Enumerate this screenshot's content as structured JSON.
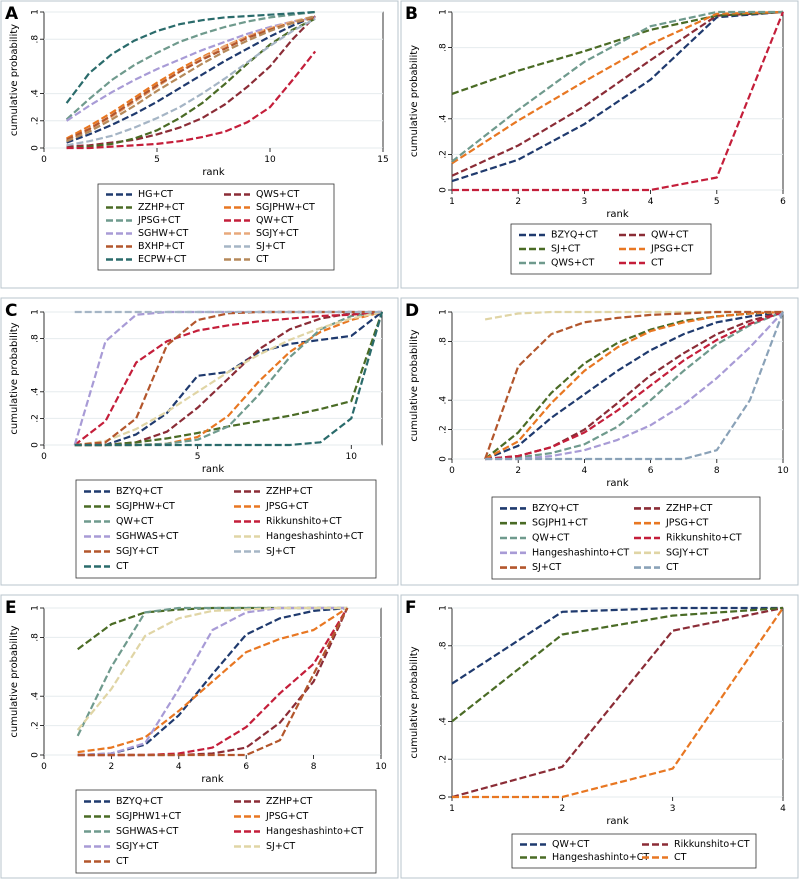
{
  "chart_data": [
    {
      "panel": "A",
      "type": "line",
      "xlabel": "rank",
      "ylabel": "cumulative probability",
      "xlim": [
        0,
        15
      ],
      "ylim": [
        0,
        1
      ],
      "xticks": [
        0,
        5,
        10,
        15
      ],
      "yticks": [
        0,
        0.2,
        0.4,
        0.8,
        1
      ],
      "ytick_labels": [
        "0",
        ".2",
        ".4",
        ".8",
        "1"
      ],
      "x": [
        1,
        2,
        3,
        4,
        5,
        6,
        7,
        8,
        9,
        10,
        11,
        12
      ],
      "series": [
        {
          "name": "HG+CT",
          "color": "#1f3a6e",
          "values": [
            0.04,
            0.1,
            0.17,
            0.25,
            0.34,
            0.44,
            0.54,
            0.64,
            0.73,
            0.82,
            0.9,
            0.97
          ]
        },
        {
          "name": "QWS+CT",
          "color": "#8b2c36",
          "values": [
            0.01,
            0.02,
            0.04,
            0.06,
            0.1,
            0.15,
            0.22,
            0.32,
            0.45,
            0.6,
            0.8,
            0.97
          ]
        },
        {
          "name": "ZZHP+CT",
          "color": "#4a6b25",
          "values": [
            0.0,
            0.01,
            0.03,
            0.07,
            0.13,
            0.22,
            0.33,
            0.47,
            0.62,
            0.76,
            0.87,
            0.95
          ]
        },
        {
          "name": "SGJPHW+CT",
          "color": "#e87722",
          "values": [
            0.07,
            0.16,
            0.26,
            0.37,
            0.48,
            0.58,
            0.67,
            0.75,
            0.82,
            0.88,
            0.92,
            0.96
          ]
        },
        {
          "name": "JPSG+CT",
          "color": "#6f9a8d",
          "values": [
            0.21,
            0.36,
            0.5,
            0.61,
            0.7,
            0.78,
            0.84,
            0.89,
            0.93,
            0.96,
            0.98,
            1.0
          ]
        },
        {
          "name": "QW+CT",
          "color": "#c41e3a",
          "values": [
            0.0,
            0.0,
            0.01,
            0.02,
            0.03,
            0.05,
            0.08,
            0.12,
            0.19,
            0.3,
            0.5,
            0.71
          ]
        },
        {
          "name": "SGHW+CT",
          "color": "#a89bd6",
          "values": [
            0.2,
            0.31,
            0.41,
            0.5,
            0.58,
            0.65,
            0.72,
            0.78,
            0.84,
            0.89,
            0.93,
            0.96
          ]
        },
        {
          "name": "SGJY+CT",
          "color": "#e8a97b",
          "values": [
            0.05,
            0.13,
            0.23,
            0.34,
            0.45,
            0.56,
            0.66,
            0.75,
            0.82,
            0.88,
            0.93,
            0.97
          ]
        },
        {
          "name": "BXHP+CT",
          "color": "#b3562c",
          "values": [
            0.06,
            0.14,
            0.24,
            0.35,
            0.46,
            0.56,
            0.65,
            0.73,
            0.81,
            0.87,
            0.92,
            0.96
          ]
        },
        {
          "name": "SJ+CT",
          "color": "#a5b5c5",
          "values": [
            0.02,
            0.05,
            0.09,
            0.15,
            0.22,
            0.3,
            0.4,
            0.51,
            0.63,
            0.75,
            0.86,
            0.95
          ]
        },
        {
          "name": "ECPW+CT",
          "color": "#2a6b6b",
          "values": [
            0.33,
            0.55,
            0.69,
            0.79,
            0.86,
            0.91,
            0.94,
            0.96,
            0.97,
            0.98,
            0.99,
            1.0
          ]
        },
        {
          "name": "CT",
          "color": "#b5895a",
          "values": [
            0.05,
            0.12,
            0.21,
            0.31,
            0.42,
            0.52,
            0.62,
            0.71,
            0.79,
            0.86,
            0.92,
            0.97
          ]
        }
      ]
    },
    {
      "panel": "B",
      "type": "line",
      "xlabel": "rank",
      "ylabel": "cumulative probability",
      "xlim": [
        1,
        6
      ],
      "ylim": [
        0,
        1
      ],
      "xticks": [
        1,
        2,
        3,
        4,
        5,
        6
      ],
      "yticks": [
        0,
        0.2,
        0.4,
        0.8,
        1
      ],
      "ytick_labels": [
        "0",
        ".2",
        ".4",
        ".8",
        "1"
      ],
      "x": [
        1,
        2,
        3,
        4,
        5,
        6
      ],
      "series": [
        {
          "name": "BZYQ+CT",
          "color": "#1f3a6e",
          "values": [
            0.05,
            0.17,
            0.37,
            0.62,
            0.97,
            1.0
          ]
        },
        {
          "name": "QW+CT",
          "color": "#8b2c36",
          "values": [
            0.08,
            0.25,
            0.47,
            0.73,
            0.98,
            1.0
          ]
        },
        {
          "name": "SJ+CT",
          "color": "#4a6b25",
          "values": [
            0.54,
            0.67,
            0.78,
            0.9,
            0.98,
            1.0
          ]
        },
        {
          "name": "JPSG+CT",
          "color": "#e87722",
          "values": [
            0.15,
            0.39,
            0.61,
            0.82,
            0.99,
            1.0
          ]
        },
        {
          "name": "QWS+CT",
          "color": "#6f9a8d",
          "values": [
            0.16,
            0.45,
            0.72,
            0.92,
            1.0,
            1.0
          ]
        },
        {
          "name": "CT",
          "color": "#c41e3a",
          "values": [
            0.0,
            0.0,
            0.0,
            0.0,
            0.07,
            1.0
          ]
        }
      ]
    },
    {
      "panel": "C",
      "type": "line",
      "xlabel": "rank",
      "ylabel": "cumulative probability",
      "xlim": [
        0,
        11
      ],
      "ylim": [
        0,
        1
      ],
      "xticks": [
        0,
        5,
        10
      ],
      "yticks": [
        0,
        0.2,
        0.4,
        0.8,
        1
      ],
      "ytick_labels": [
        "0",
        ".2",
        ".4",
        ".8",
        "1"
      ],
      "x": [
        1,
        2,
        3,
        4,
        5,
        6,
        7,
        8,
        9,
        10,
        11
      ],
      "series": [
        {
          "name": "BZYQ+CT",
          "color": "#1f3a6e",
          "values": [
            0.0,
            0.0,
            0.08,
            0.24,
            0.52,
            0.55,
            0.7,
            0.76,
            0.79,
            0.82,
            1.0
          ]
        },
        {
          "name": "ZZHP+CT",
          "color": "#8b2c36",
          "values": [
            0.0,
            0.0,
            0.02,
            0.1,
            0.28,
            0.5,
            0.72,
            0.87,
            0.95,
            0.99,
            1.0
          ]
        },
        {
          "name": "SGJPHW+CT",
          "color": "#4a6b25",
          "values": [
            0.0,
            0.0,
            0.02,
            0.05,
            0.09,
            0.14,
            0.18,
            0.22,
            0.27,
            0.33,
            1.0
          ]
        },
        {
          "name": "JPSG+CT",
          "color": "#e87722",
          "values": [
            0.0,
            0.0,
            0.0,
            0.01,
            0.06,
            0.22,
            0.48,
            0.7,
            0.85,
            0.94,
            1.0
          ]
        },
        {
          "name": "QW+CT",
          "color": "#6f9a8d",
          "values": [
            0.0,
            0.0,
            0.0,
            0.01,
            0.04,
            0.14,
            0.38,
            0.66,
            0.87,
            0.97,
            1.0
          ]
        },
        {
          "name": "Rikkunshito+CT",
          "color": "#c41e3a",
          "values": [
            0.0,
            0.18,
            0.62,
            0.78,
            0.86,
            0.9,
            0.93,
            0.95,
            0.97,
            0.98,
            1.0
          ]
        },
        {
          "name": "SGHWAS+CT",
          "color": "#a89bd6",
          "values": [
            0.0,
            0.78,
            0.98,
            1.0,
            1.0,
            1.0,
            1.0,
            1.0,
            1.0,
            1.0,
            1.0
          ]
        },
        {
          "name": "Hangeshashinto+CT",
          "color": "#e0d5a5",
          "values": [
            0.0,
            0.03,
            0.12,
            0.25,
            0.4,
            0.55,
            0.68,
            0.79,
            0.88,
            0.95,
            1.0
          ]
        },
        {
          "name": "SGJY+CT",
          "color": "#b3562c",
          "values": [
            0.0,
            0.02,
            0.2,
            0.75,
            0.94,
            0.99,
            1.0,
            1.0,
            1.0,
            1.0,
            1.0
          ]
        },
        {
          "name": "SJ+CT",
          "color": "#a5b5c5",
          "values": [
            1.0,
            1.0,
            1.0,
            1.0,
            1.0,
            1.0,
            1.0,
            1.0,
            1.0,
            1.0,
            1.0
          ]
        },
        {
          "name": "CT",
          "color": "#2a6b6b",
          "values": [
            0.0,
            0.0,
            0.0,
            0.0,
            0.0,
            0.0,
            0.0,
            0.0,
            0.02,
            0.2,
            1.0
          ]
        }
      ]
    },
    {
      "panel": "D",
      "type": "line",
      "xlabel": "rank",
      "ylabel": "cumulative probability",
      "xlim": [
        0,
        10
      ],
      "ylim": [
        0,
        1
      ],
      "xticks": [
        0,
        2,
        4,
        6,
        8,
        10
      ],
      "yticks": [
        0,
        0.2,
        0.4,
        0.8,
        1
      ],
      "ytick_labels": [
        "0",
        ".2",
        ".4",
        ".8",
        "1"
      ],
      "x": [
        1,
        2,
        3,
        4,
        5,
        6,
        7,
        8,
        9,
        10
      ],
      "series": [
        {
          "name": "BZYQ+CT",
          "color": "#1f3a6e",
          "values": [
            0.0,
            0.09,
            0.28,
            0.44,
            0.6,
            0.74,
            0.85,
            0.93,
            0.97,
            1.0
          ]
        },
        {
          "name": "ZZHP+CT",
          "color": "#8b2c36",
          "values": [
            0.0,
            0.02,
            0.08,
            0.2,
            0.38,
            0.57,
            0.72,
            0.85,
            0.94,
            1.0
          ]
        },
        {
          "name": "SGJPH1+CT",
          "color": "#4a6b25",
          "values": [
            0.0,
            0.18,
            0.45,
            0.65,
            0.79,
            0.88,
            0.94,
            0.97,
            0.99,
            1.0
          ]
        },
        {
          "name": "JPSG+CT",
          "color": "#e87722",
          "values": [
            0.0,
            0.12,
            0.38,
            0.6,
            0.76,
            0.87,
            0.93,
            0.97,
            0.99,
            1.0
          ]
        },
        {
          "name": "QW+CT",
          "color": "#6f9a8d",
          "values": [
            0.0,
            0.01,
            0.04,
            0.1,
            0.22,
            0.4,
            0.6,
            0.78,
            0.91,
            1.0
          ]
        },
        {
          "name": "Rikkunshito+CT",
          "color": "#c41e3a",
          "values": [
            0.0,
            0.02,
            0.08,
            0.18,
            0.33,
            0.5,
            0.67,
            0.81,
            0.92,
            1.0
          ]
        },
        {
          "name": "Hangeshashinto+CT",
          "color": "#a89bd6",
          "values": [
            0.0,
            0.0,
            0.02,
            0.06,
            0.13,
            0.23,
            0.37,
            0.55,
            0.76,
            1.0
          ]
        },
        {
          "name": "SGJY+CT",
          "color": "#e0d5a5",
          "values": [
            0.95,
            0.99,
            1.0,
            1.0,
            1.0,
            1.0,
            1.0,
            1.0,
            1.0,
            1.0
          ]
        },
        {
          "name": "SJ+CT",
          "color": "#b3562c",
          "values": [
            0.0,
            0.63,
            0.85,
            0.93,
            0.96,
            0.98,
            0.99,
            1.0,
            1.0,
            1.0
          ]
        },
        {
          "name": "CT",
          "color": "#8aa2b8",
          "values": [
            0.0,
            0.0,
            0.0,
            0.0,
            0.0,
            0.0,
            0.0,
            0.06,
            0.4,
            1.0
          ]
        }
      ]
    },
    {
      "panel": "E",
      "type": "line",
      "xlabel": "rank",
      "ylabel": "cumulative probability",
      "xlim": [
        0,
        10
      ],
      "ylim": [
        0,
        1
      ],
      "xticks": [
        0,
        2,
        4,
        6,
        8,
        10
      ],
      "yticks": [
        0,
        0.2,
        0.4,
        0.8,
        1
      ],
      "ytick_labels": [
        "0",
        ".2",
        ".4",
        ".8",
        "1"
      ],
      "x": [
        1,
        2,
        3,
        4,
        5,
        6,
        7,
        8,
        9
      ],
      "series": [
        {
          "name": "BZYQ+CT",
          "color": "#1f3a6e",
          "values": [
            0.0,
            0.01,
            0.07,
            0.27,
            0.55,
            0.82,
            0.93,
            0.98,
            1.0
          ]
        },
        {
          "name": "ZZHP+CT",
          "color": "#8b2c36",
          "values": [
            0.0,
            0.0,
            0.0,
            0.0,
            0.01,
            0.05,
            0.22,
            0.5,
            1.0
          ]
        },
        {
          "name": "SGJPHW1+CT",
          "color": "#4a6b25",
          "values": [
            0.72,
            0.89,
            0.97,
            0.99,
            1.0,
            1.0,
            1.0,
            1.0,
            1.0
          ]
        },
        {
          "name": "JPSG+CT",
          "color": "#e87722",
          "values": [
            0.02,
            0.05,
            0.12,
            0.3,
            0.5,
            0.7,
            0.79,
            0.85,
            1.0
          ]
        },
        {
          "name": "SGHWAS+CT",
          "color": "#6f9a8d",
          "values": [
            0.13,
            0.6,
            0.97,
            1.0,
            1.0,
            1.0,
            1.0,
            1.0,
            1.0
          ]
        },
        {
          "name": "Hangeshashinto+CT",
          "color": "#c41e3a",
          "values": [
            0.0,
            0.0,
            0.0,
            0.01,
            0.05,
            0.19,
            0.42,
            0.62,
            1.0
          ]
        },
        {
          "name": "SGJY+CT",
          "color": "#a89bd6",
          "values": [
            0.0,
            0.01,
            0.08,
            0.45,
            0.85,
            0.97,
            1.0,
            1.0,
            1.0
          ]
        },
        {
          "name": "SJ+CT",
          "color": "#e0d5a5",
          "values": [
            0.17,
            0.45,
            0.81,
            0.93,
            0.98,
            0.99,
            1.0,
            1.0,
            1.0
          ]
        },
        {
          "name": "CT",
          "color": "#b3562c",
          "values": [
            0.0,
            0.0,
            0.0,
            0.0,
            0.0,
            0.0,
            0.1,
            0.55,
            1.0
          ]
        }
      ]
    },
    {
      "panel": "F",
      "type": "line",
      "xlabel": "rank",
      "ylabel": "cumulative probability",
      "xlim": [
        1,
        4
      ],
      "ylim": [
        0,
        1
      ],
      "xticks": [
        1,
        2,
        3,
        4
      ],
      "yticks": [
        0,
        0.2,
        0.4,
        0.8,
        1
      ],
      "ytick_labels": [
        "0",
        ".2",
        ".4",
        ".8",
        "1"
      ],
      "x": [
        1,
        2,
        3,
        4
      ],
      "series": [
        {
          "name": "QW+CT",
          "color": "#1f3a6e",
          "values": [
            0.6,
            0.98,
            1.0,
            1.0
          ]
        },
        {
          "name": "Rikkunshito+CT",
          "color": "#8b2c36",
          "values": [
            0.0,
            0.16,
            0.88,
            1.0
          ]
        },
        {
          "name": "Hangeshashinto+CT",
          "color": "#4a6b25",
          "values": [
            0.4,
            0.86,
            0.96,
            1.0
          ]
        },
        {
          "name": "CT",
          "color": "#e87722",
          "values": [
            0.0,
            0.0,
            0.15,
            1.0
          ]
        }
      ]
    }
  ]
}
